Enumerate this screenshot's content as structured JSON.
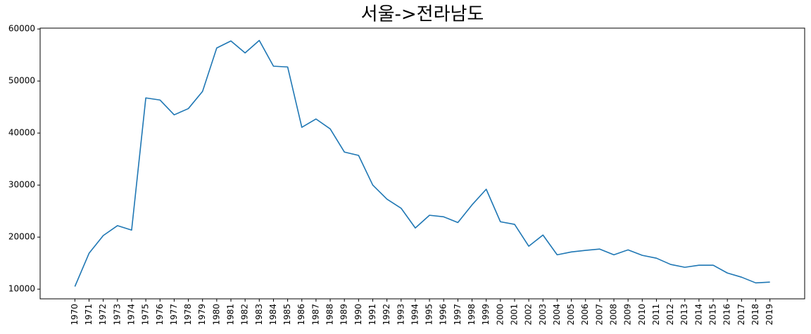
{
  "chart_data": {
    "type": "line",
    "title": "서울->전라남도",
    "categories": [
      "1970",
      "1971",
      "1972",
      "1973",
      "1974",
      "1975",
      "1976",
      "1977",
      "1978",
      "1979",
      "1980",
      "1981",
      "1982",
      "1983",
      "1984",
      "1985",
      "1986",
      "1987",
      "1988",
      "1989",
      "1990",
      "1991",
      "1992",
      "1993",
      "1994",
      "1995",
      "1996",
      "1997",
      "1998",
      "1999",
      "2000",
      "2001",
      "2002",
      "2003",
      "2004",
      "2005",
      "2006",
      "2007",
      "2008",
      "2009",
      "2010",
      "2011",
      "2012",
      "2013",
      "2014",
      "2015",
      "2016",
      "2017",
      "2018",
      "2019"
    ],
    "series": [
      {
        "name": "전라남도",
        "color": "#1f77b4",
        "values": [
          10500,
          16900,
          20300,
          22200,
          21350,
          46750,
          46350,
          43500,
          44700,
          48000,
          56350,
          57700,
          55400,
          57800,
          52850,
          52700,
          41100,
          42700,
          40800,
          36350,
          35700,
          30000,
          27300,
          25550,
          21750,
          24200,
          23900,
          22800,
          26200,
          29200,
          22950,
          22450,
          18250,
          20400,
          16600,
          17150,
          17450,
          17700,
          16600,
          17550,
          16500,
          15950,
          14750,
          14200,
          14600,
          14600,
          13100,
          12300,
          11200,
          11350
        ]
      }
    ],
    "ylim": [
      8135,
      60165
    ],
    "yticks": [
      10000,
      20000,
      30000,
      40000,
      50000,
      60000
    ],
    "grid": false
  }
}
